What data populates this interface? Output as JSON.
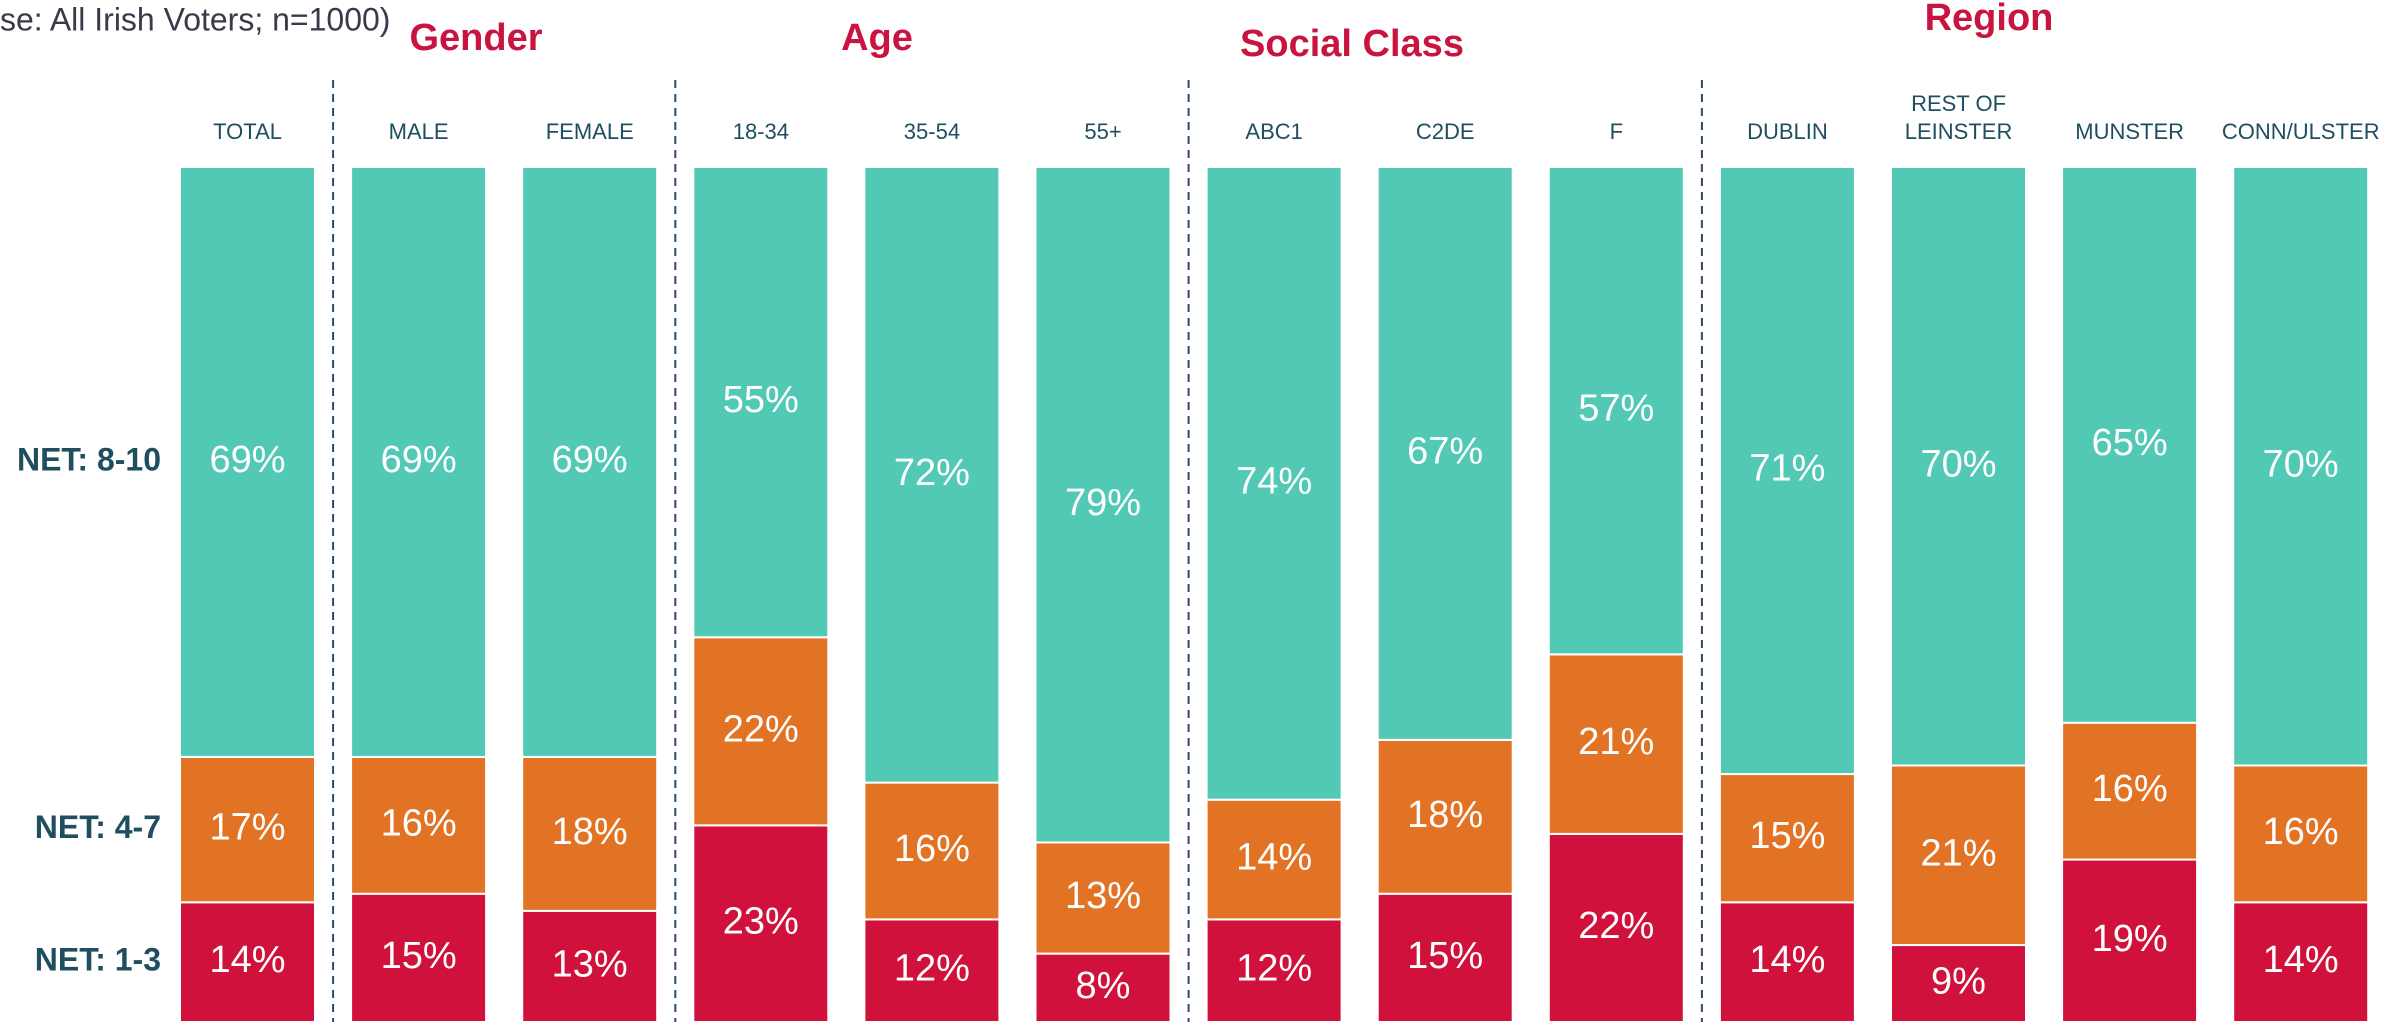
{
  "chart_data": {
    "type": "stacked_bar",
    "base_note": "se: All Irish Voters; n=1000)",
    "groups": [
      "Gender",
      "Age",
      "Social Class",
      "Region"
    ],
    "categories": [
      "TOTAL",
      "MALE",
      "FEMALE",
      "18-34",
      "35-54",
      "55+",
      "ABC1",
      "C2DE",
      "F",
      "DUBLIN",
      "REST OF LEINSTER",
      "MUNSTER",
      "CONN/ULSTER"
    ],
    "ylim": [
      0,
      100
    ],
    "series": [
      {
        "name": "NET: 1-3",
        "color": "#d0113b",
        "values": [
          14,
          15,
          13,
          23,
          12,
          8,
          12,
          15,
          22,
          14,
          9,
          19,
          14
        ],
        "value_labels": [
          "14%",
          "15%",
          "13%",
          "23%",
          "12%",
          "8%",
          "12%",
          "15%",
          "22%",
          "14%",
          "9%",
          "19%",
          "14%"
        ]
      },
      {
        "name": "NET: 4-7",
        "color": "#e37324",
        "values": [
          17,
          16,
          18,
          22,
          16,
          13,
          14,
          18,
          21,
          15,
          21,
          16,
          16
        ],
        "value_labels": [
          "17%",
          "16%",
          "18%",
          "22%",
          "16%",
          "13%",
          "14%",
          "18%",
          "21%",
          "15%",
          "21%",
          "16%",
          "16%"
        ]
      },
      {
        "name": "NET: 8-10",
        "color": "#52c9b5",
        "values": [
          69,
          69,
          69,
          55,
          72,
          79,
          74,
          67,
          57,
          71,
          70,
          65,
          70
        ],
        "value_labels": [
          "69%",
          "69%",
          "69%",
          "55%",
          "72%",
          "79%",
          "74%",
          "67%",
          "57%",
          "71%",
          "70%",
          "65%",
          "70%"
        ]
      }
    ]
  }
}
